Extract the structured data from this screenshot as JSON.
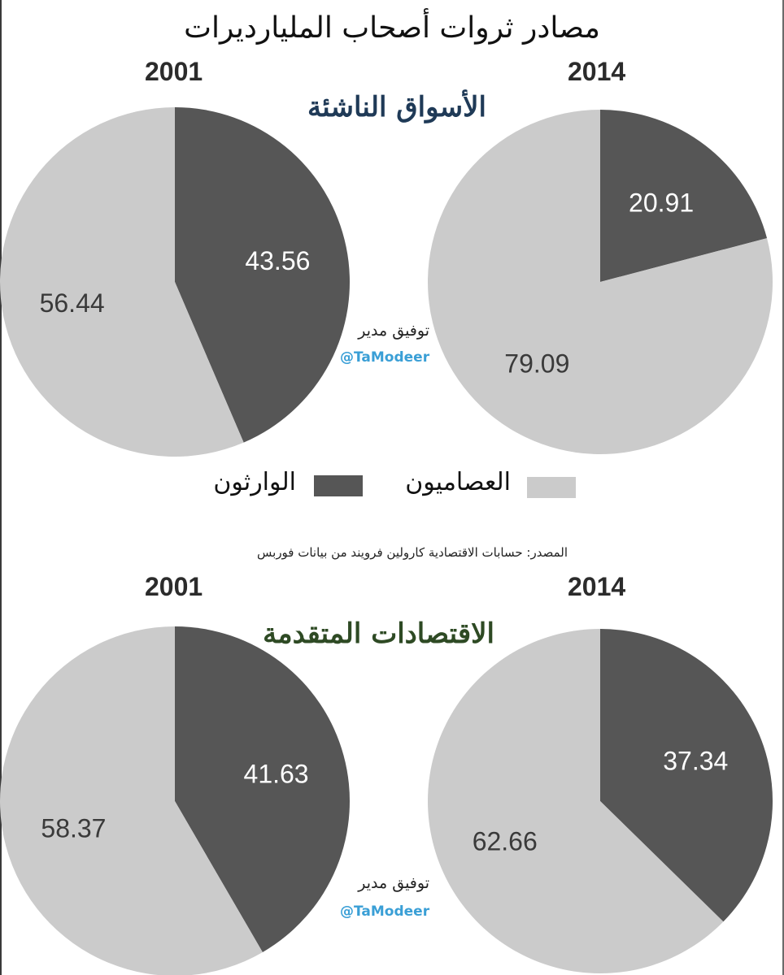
{
  "title": "مصادر ثروات أصحاب المليارديرات",
  "credit": {
    "name": "توفيق مدير",
    "handle": "@TaModeer"
  },
  "legend": [
    {
      "label": "الوارثون",
      "color": "#565656"
    },
    {
      "label": "العصاميون",
      "color": "#cbcbcb"
    }
  ],
  "source": "المصدر: حسابات الاقتصادية  كارولين فرويند من بيانات فوربس",
  "sections": [
    {
      "title": "الأسواق الناشئة",
      "title_color": "#1f3a57"
    },
    {
      "title": "الاقتصادات المتقدمة",
      "title_color": "#2e4a24"
    }
  ],
  "chart_data": [
    {
      "type": "pie",
      "section": "الأسواق الناشئة",
      "title": "2001",
      "labels": [
        "الوارثون",
        "العصاميون"
      ],
      "values": [
        43.56,
        56.44
      ],
      "colors": [
        "#565656",
        "#cbcbcb"
      ],
      "value_labels": [
        "43.56",
        "56.44"
      ]
    },
    {
      "type": "pie",
      "section": "الأسواق الناشئة",
      "title": "2014",
      "labels": [
        "الوارثون",
        "العصاميون"
      ],
      "values": [
        20.91,
        79.09
      ],
      "colors": [
        "#565656",
        "#cbcbcb"
      ],
      "value_labels": [
        "20.91",
        "79.09"
      ]
    },
    {
      "type": "pie",
      "section": "الاقتصادات المتقدمة",
      "title": "2001",
      "labels": [
        "الوارثون",
        "العصاميون"
      ],
      "values": [
        41.63,
        58.37
      ],
      "colors": [
        "#565656",
        "#cbcbcb"
      ],
      "value_labels": [
        "41.63",
        "58.37"
      ]
    },
    {
      "type": "pie",
      "section": "الاقتصادات المتقدمة",
      "title": "2014",
      "labels": [
        "الوارثون",
        "العصاميون"
      ],
      "values": [
        37.34,
        62.66
      ],
      "colors": [
        "#565656",
        "#cbcbcb"
      ],
      "value_labels": [
        "37.34",
        "62.66"
      ]
    }
  ]
}
